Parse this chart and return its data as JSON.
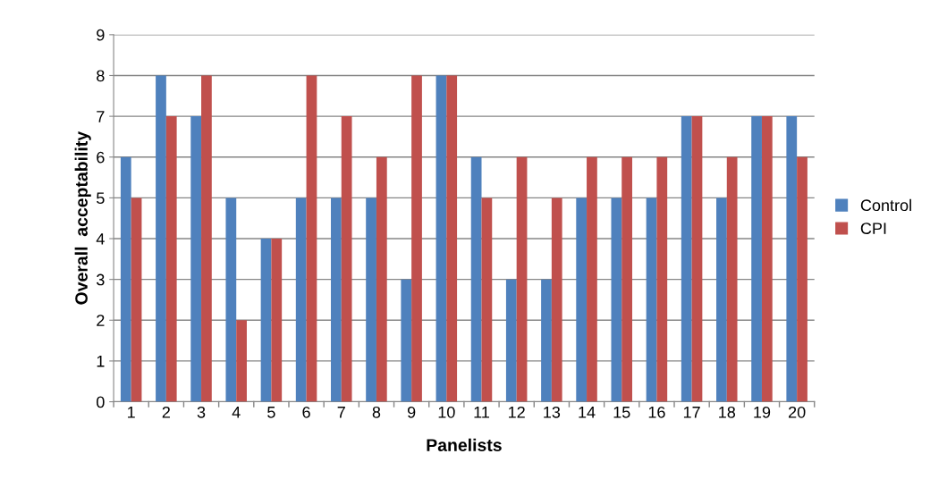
{
  "chart_data": {
    "type": "bar",
    "xlabel": "Panelists",
    "ylabel": "Overall  acceptability",
    "categories": [
      "1",
      "2",
      "3",
      "4",
      "5",
      "6",
      "7",
      "8",
      "9",
      "10",
      "11",
      "12",
      "13",
      "14",
      "15",
      "16",
      "17",
      "18",
      "19",
      "20"
    ],
    "series": [
      {
        "name": "Control",
        "color": "#4f81bd",
        "values": [
          6,
          8,
          7,
          5,
          4,
          5,
          5,
          5,
          3,
          8,
          6,
          3,
          3,
          5,
          5,
          5,
          7,
          5,
          7,
          7
        ]
      },
      {
        "name": "CPI",
        "color": "#c0504d",
        "values": [
          5,
          7,
          8,
          2,
          4,
          8,
          7,
          6,
          8,
          8,
          5,
          6,
          5,
          6,
          6,
          6,
          7,
          6,
          7,
          6
        ]
      }
    ],
    "ylim": [
      0,
      9
    ],
    "yticks": [
      0,
      1,
      2,
      3,
      4,
      5,
      6,
      7,
      8,
      9
    ],
    "grid": "y",
    "legend": "right"
  }
}
